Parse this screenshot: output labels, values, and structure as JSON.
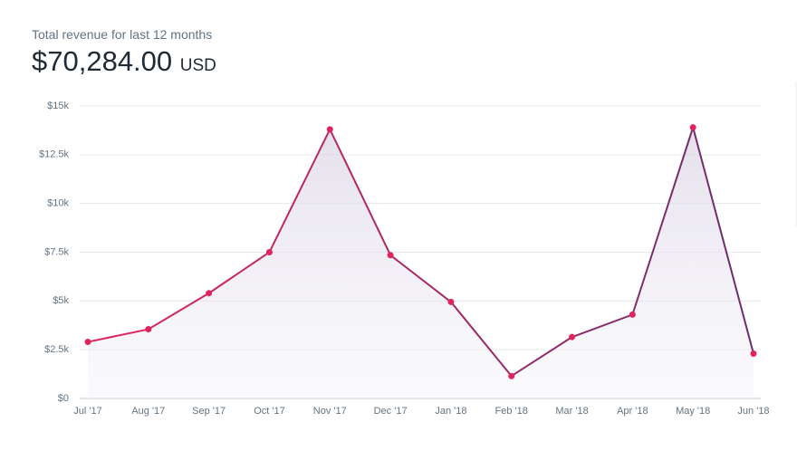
{
  "chart_data": {
    "type": "line",
    "title": "Total revenue for last 12 months",
    "total": "$70,284.00",
    "currency": "USD",
    "categories": [
      "Jul '17",
      "Aug '17",
      "Sep '17",
      "Oct '17",
      "Nov '17",
      "Dec '17",
      "Jan '18",
      "Feb '18",
      "Mar '18",
      "Apr '18",
      "May '18",
      "Jun '18"
    ],
    "values": [
      2900,
      3550,
      5400,
      7500,
      13800,
      7350,
      4950,
      1150,
      3150,
      4300,
      13900,
      2300
    ],
    "ylim": [
      0,
      15000
    ],
    "yticks": [
      {
        "value": 0,
        "label": "$0"
      },
      {
        "value": 2500,
        "label": "$2.5k"
      },
      {
        "value": 5000,
        "label": "$5k"
      },
      {
        "value": 7500,
        "label": "$7.5k"
      },
      {
        "value": 10000,
        "label": "$10k"
      },
      {
        "value": 12500,
        "label": "$12.5k"
      },
      {
        "value": 15000,
        "label": "$15k"
      }
    ],
    "grid": true,
    "line_color_start": "#e0245e",
    "line_color_end": "#6b2d6e",
    "marker_color": "#e0245e"
  }
}
